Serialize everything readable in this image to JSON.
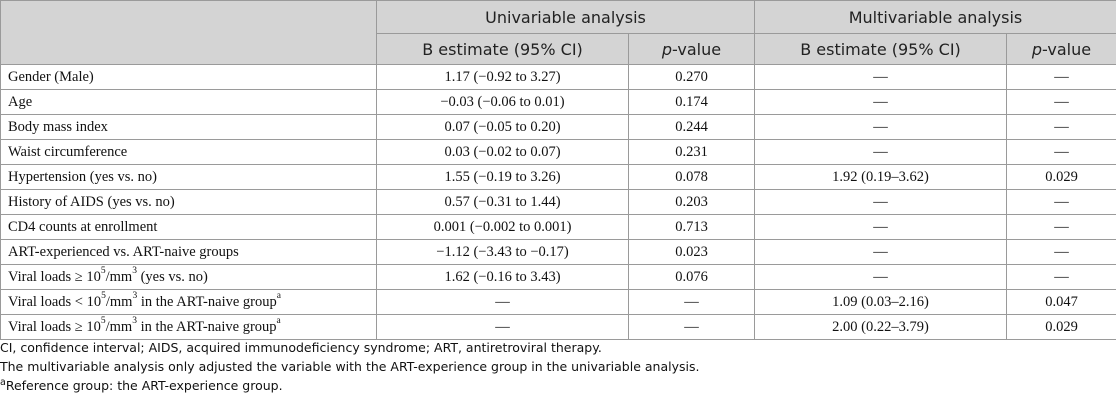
{
  "header": {
    "univariable": "Univariable analysis",
    "multivariable": "Multivariable analysis",
    "b_estimate": "B estimate (95% CI)",
    "p_prefix": "p",
    "p_suffix": "-value"
  },
  "rows": [
    {
      "label": "Gender (Male)",
      "u_b": "1.17 (−0.92 to 3.27)",
      "u_p": "0.270",
      "m_b": "—",
      "m_p": "—"
    },
    {
      "label": "Age",
      "u_b": "−0.03 (−0.06 to 0.01)",
      "u_p": "0.174",
      "m_b": "—",
      "m_p": "—"
    },
    {
      "label": "Body mass index",
      "u_b": "0.07 (−0.05 to 0.20)",
      "u_p": "0.244",
      "m_b": "—",
      "m_p": "—"
    },
    {
      "label": "Waist circumference",
      "u_b": "0.03 (−0.02 to 0.07)",
      "u_p": "0.231",
      "m_b": "—",
      "m_p": "—"
    },
    {
      "label": "Hypertension (yes vs. no)",
      "u_b": "1.55 (−0.19 to 3.26)",
      "u_p": "0.078",
      "m_b": "1.92 (0.19–3.62)",
      "m_p": "0.029"
    },
    {
      "label": "History of AIDS (yes vs. no)",
      "u_b": "0.57 (−0.31 to 1.44)",
      "u_p": "0.203",
      "m_b": "—",
      "m_p": "—"
    },
    {
      "label": "CD4 counts at enrollment",
      "u_b": "0.001 (−0.002 to 0.001)",
      "u_p": "0.713",
      "m_b": "—",
      "m_p": "—"
    },
    {
      "label": "ART-experienced vs. ART-naive groups",
      "u_b": "−1.12 (−3.43 to −0.17)",
      "u_p": "0.023",
      "m_b": "—",
      "m_p": "—"
    },
    {
      "label_a": "Viral loads ≥ 10",
      "label_sup1": "5",
      "label_b": "/mm",
      "label_sup2": "3",
      "label_c": " (yes vs. no)",
      "u_b": "1.62 (−0.16 to 3.43)",
      "u_p": "0.076",
      "m_b": "—",
      "m_p": "—"
    },
    {
      "label_a": "Viral loads < 10",
      "label_sup1": "5",
      "label_b": "/mm",
      "label_sup2": "3",
      "label_c": " in the ART-naive group",
      "label_sup3": "a",
      "u_b": "—",
      "u_p": "—",
      "m_b": "1.09 (0.03–2.16)",
      "m_p": "0.047"
    },
    {
      "label_a": "Viral loads ≥ 10",
      "label_sup1": "5",
      "label_b": "/mm",
      "label_sup2": "3",
      "label_c": " in the ART-naive group",
      "label_sup3": "a",
      "u_b": "—",
      "u_p": "—",
      "m_b": "2.00 (0.22–3.79)",
      "m_p": "0.029"
    }
  ],
  "notes": {
    "line1": "CI, confidence interval; AIDS, acquired immunodeficiency syndrome; ART, antiretroviral therapy.",
    "line2": "The multivariable analysis only adjusted the variable with the ART-experience group in the univariable analysis.",
    "line3_sup": "a",
    "line3": "Reference group: the ART-experience group."
  }
}
